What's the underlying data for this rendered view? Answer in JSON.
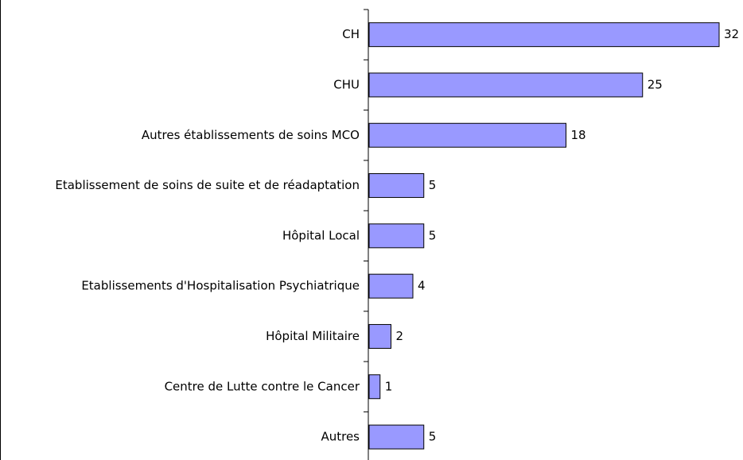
{
  "chart_data": {
    "type": "hbar",
    "categories": [
      "CH",
      "CHU",
      "Autres établissements de soins MCO",
      "Etablissement de soins de suite et de réadaptation",
      "Hôpital Local",
      "Etablissements d'Hospitalisation Psychiatrique",
      "Hôpital Militaire",
      "Centre de Lutte contre le Cancer",
      "Autres"
    ],
    "values": [
      32,
      25,
      18,
      5,
      5,
      4,
      2,
      1,
      5
    ],
    "color": "#9999ff"
  }
}
